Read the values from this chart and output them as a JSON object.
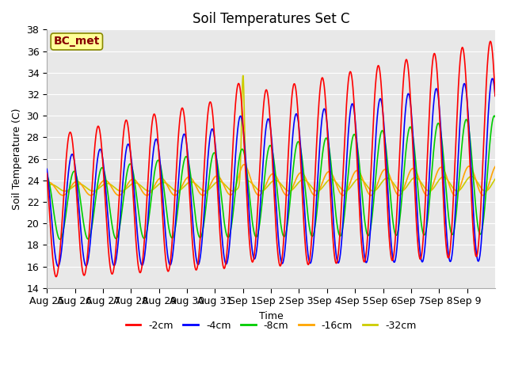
{
  "title": "Soil Temperatures Set C",
  "xlabel": "Time",
  "ylabel": "Soil Temperature (C)",
  "ylim": [
    14,
    38
  ],
  "yticks": [
    14,
    16,
    18,
    20,
    22,
    24,
    26,
    28,
    30,
    32,
    34,
    36,
    38
  ],
  "x_labels": [
    "Aug 25",
    "Aug 26",
    "Aug 27",
    "Aug 28",
    "Aug 29",
    "Aug 30",
    "Aug 31",
    "Sep 1",
    "Sep 2",
    "Sep 3",
    "Sep 4",
    "Sep 5",
    "Sep 6",
    "Sep 7",
    "Sep 8",
    "Sep 9"
  ],
  "colors": {
    "-2cm": "#ff0000",
    "-4cm": "#0000ff",
    "-8cm": "#00cc00",
    "-16cm": "#ffa500",
    "-32cm": "#cccc00"
  },
  "legend_label": "BC_met",
  "legend_bg": "#ffff99",
  "legend_edge": "#888800",
  "legend_text_color": "#880000",
  "plot_bg": "#e8e8e8",
  "fig_bg": "#ffffff",
  "grid_color": "#ffffff",
  "title_fontsize": 12,
  "axis_fontsize": 9,
  "legend_fontsize": 9,
  "line_width": 1.2
}
